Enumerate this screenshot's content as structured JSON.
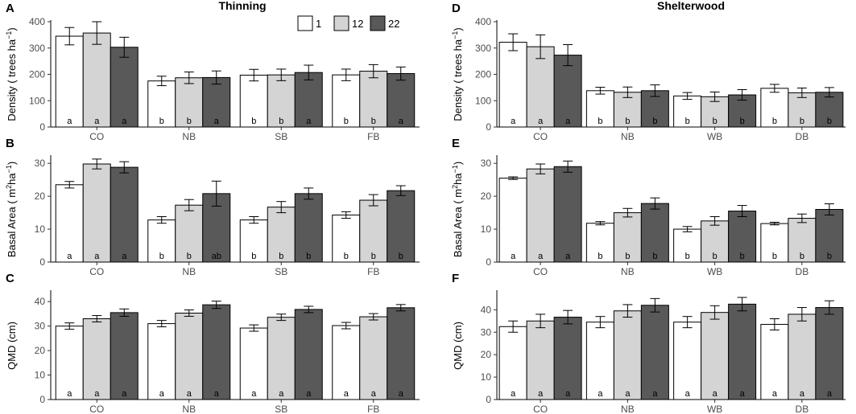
{
  "titles": {
    "left": "Thinning",
    "right": "Shelterwood"
  },
  "legend": [
    {
      "label": "1",
      "color": "#ffffff"
    },
    {
      "label": "12",
      "color": "#d4d4d4"
    },
    {
      "label": "22",
      "color": "#595959"
    }
  ],
  "chart_data": [
    {
      "type": "bar",
      "panel": "A",
      "treatment": "Thinning",
      "ylabel": {
        "main": "Density ( trees ha",
        "sup": "−1",
        "tail": ")"
      },
      "ylim": [
        0,
        400
      ],
      "yticks": [
        0,
        100,
        200,
        300,
        400
      ],
      "categories": [
        "CO",
        "NB",
        "SB",
        "FB"
      ],
      "series": [
        {
          "name": "1",
          "values": [
            345,
            175,
            197,
            198
          ],
          "errors": [
            33,
            18,
            22,
            22
          ]
        },
        {
          "name": "12",
          "values": [
            357,
            187,
            198,
            212
          ],
          "errors": [
            43,
            22,
            22,
            25
          ]
        },
        {
          "name": "22",
          "values": [
            303,
            188,
            207,
            203
          ],
          "errors": [
            38,
            25,
            28,
            25
          ]
        }
      ],
      "letters": [
        [
          "a",
          "a",
          "a"
        ],
        [
          "b",
          "b",
          "a"
        ],
        [
          "b",
          "b",
          "a"
        ],
        [
          "b",
          "b",
          "a"
        ]
      ]
    },
    {
      "type": "bar",
      "panel": "B",
      "treatment": "Thinning",
      "ylabel": {
        "main": "Basal Area ( m",
        "sup": "2",
        "main2": "ha",
        "sup2": "−1",
        "tail": ")"
      },
      "ylim": [
        0,
        32
      ],
      "yticks": [
        0,
        10,
        20,
        30
      ],
      "categories": [
        "CO",
        "NB",
        "SB",
        "FB"
      ],
      "series": [
        {
          "name": "1",
          "values": [
            23.5,
            12.8,
            12.8,
            14.3
          ],
          "errors": [
            1.0,
            1.0,
            1.0,
            1.0
          ]
        },
        {
          "name": "12",
          "values": [
            29.8,
            17.3,
            16.7,
            18.8
          ],
          "errors": [
            1.5,
            1.7,
            1.7,
            1.7
          ]
        },
        {
          "name": "22",
          "values": [
            28.8,
            20.8,
            20.8,
            21.7
          ],
          "errors": [
            1.7,
            3.8,
            1.7,
            1.5
          ]
        }
      ],
      "letters": [
        [
          "a",
          "a",
          "a"
        ],
        [
          "b",
          "b",
          "ab"
        ],
        [
          "b",
          "b",
          "b"
        ],
        [
          "b",
          "b",
          "b"
        ]
      ]
    },
    {
      "type": "bar",
      "panel": "C",
      "treatment": "Thinning",
      "ylabel": {
        "main": "QMD (cm)"
      },
      "ylim": [
        0,
        44
      ],
      "yticks": [
        0,
        10,
        20,
        30,
        40
      ],
      "categories": [
        "CO",
        "NB",
        "SB",
        "FB"
      ],
      "series": [
        {
          "name": "1",
          "values": [
            30.0,
            31.0,
            29.2,
            30.2
          ],
          "errors": [
            1.3,
            1.3,
            1.3,
            1.3
          ]
        },
        {
          "name": "12",
          "values": [
            33.0,
            35.3,
            33.6,
            33.8
          ],
          "errors": [
            1.3,
            1.3,
            1.3,
            1.3
          ]
        },
        {
          "name": "22",
          "values": [
            35.5,
            38.7,
            36.8,
            37.5
          ],
          "errors": [
            1.5,
            1.5,
            1.3,
            1.3
          ]
        }
      ],
      "letters": [
        [
          "a",
          "a",
          "a"
        ],
        [
          "a",
          "a",
          "a"
        ],
        [
          "a",
          "a",
          "a"
        ],
        [
          "a",
          "a",
          "a"
        ]
      ]
    },
    {
      "type": "bar",
      "panel": "D",
      "treatment": "Shelterwood",
      "ylabel": {
        "main": "Density ( trees ha",
        "sup": "−1",
        "tail": ")"
      },
      "ylim": [
        0,
        400
      ],
      "yticks": [
        0,
        100,
        200,
        300,
        400
      ],
      "categories": [
        "CO",
        "NB",
        "WB",
        "DB"
      ],
      "series": [
        {
          "name": "1",
          "values": [
            322,
            138,
            118,
            147
          ],
          "errors": [
            32,
            13,
            13,
            15
          ]
        },
        {
          "name": "12",
          "values": [
            305,
            132,
            115,
            130
          ],
          "errors": [
            45,
            20,
            18,
            18
          ]
        },
        {
          "name": "22",
          "values": [
            273,
            138,
            122,
            132
          ],
          "errors": [
            40,
            22,
            20,
            18
          ]
        }
      ],
      "letters": [
        [
          "a",
          "a",
          "a"
        ],
        [
          "b",
          "b",
          "b"
        ],
        [
          "b",
          "b",
          "b"
        ],
        [
          "b",
          "b",
          "b"
        ]
      ]
    },
    {
      "type": "bar",
      "panel": "E",
      "treatment": "Shelterwood",
      "ylabel": {
        "main": "Basal Area ( m",
        "sup": "2",
        "main2": "ha",
        "sup2": "−1",
        "tail": ")"
      },
      "ylim": [
        0,
        32
      ],
      "yticks": [
        0,
        10,
        20,
        30
      ],
      "categories": [
        "CO",
        "NB",
        "WB",
        "DB"
      ],
      "series": [
        {
          "name": "1",
          "values": [
            25.5,
            11.8,
            10.0,
            11.7
          ],
          "errors": [
            0.4,
            0.5,
            0.8,
            0.4
          ]
        },
        {
          "name": "12",
          "values": [
            28.3,
            15.0,
            12.5,
            13.3
          ],
          "errors": [
            1.5,
            1.3,
            1.3,
            1.3
          ]
        },
        {
          "name": "22",
          "values": [
            29.0,
            17.8,
            15.5,
            16.0
          ],
          "errors": [
            1.7,
            1.7,
            1.7,
            1.7
          ]
        }
      ],
      "letters": [
        [
          "a",
          "a",
          "a"
        ],
        [
          "b",
          "b",
          "b"
        ],
        [
          "b",
          "b",
          "b"
        ],
        [
          "b",
          "b",
          "b"
        ]
      ]
    },
    {
      "type": "bar",
      "panel": "F",
      "treatment": "Shelterwood",
      "ylabel": {
        "main": "QMD (cm)"
      },
      "ylim": [
        0,
        48
      ],
      "yticks": [
        0,
        10,
        20,
        30,
        40
      ],
      "categories": [
        "CO",
        "NB",
        "WB",
        "DB"
      ],
      "series": [
        {
          "name": "1",
          "values": [
            32.5,
            34.5,
            34.5,
            33.5
          ],
          "errors": [
            2.5,
            2.5,
            2.5,
            2.5
          ]
        },
        {
          "name": "12",
          "values": [
            35.0,
            39.5,
            38.8,
            38.0
          ],
          "errors": [
            3.0,
            2.8,
            3.0,
            3.0
          ]
        },
        {
          "name": "22",
          "values": [
            36.7,
            42.0,
            42.5,
            41.0
          ],
          "errors": [
            3.0,
            3.0,
            3.0,
            3.0
          ]
        }
      ],
      "letters": [
        [
          "a",
          "a",
          "a"
        ],
        [
          "a",
          "a",
          "a"
        ],
        [
          "a",
          "a",
          "a"
        ],
        [
          "a",
          "a",
          "a"
        ]
      ]
    }
  ]
}
